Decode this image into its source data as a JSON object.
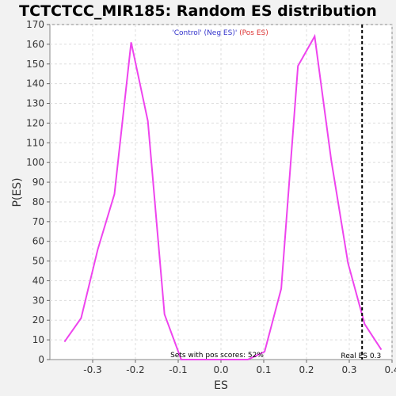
{
  "chart_data": {
    "type": "line",
    "title": "TCTCTCC_MIR185: Random ES distribution",
    "xlabel": "ES",
    "ylabel": "P(ES)",
    "xlim": [
      -0.4,
      0.4
    ],
    "ylim": [
      0,
      170
    ],
    "x_ticks": [
      -0.3,
      -0.2,
      -0.1,
      0.0,
      0.1,
      0.2,
      0.3,
      0.4
    ],
    "x_tick_labels": [
      "-0.3",
      "-0.2",
      "-0.1",
      "0.0",
      "0.1",
      "0.2",
      "0.3",
      "0.4"
    ],
    "y_ticks": [
      0,
      10,
      20,
      30,
      40,
      50,
      60,
      70,
      80,
      90,
      100,
      110,
      120,
      130,
      140,
      150,
      160,
      170
    ],
    "grid": true,
    "legend": {
      "position": "top-center",
      "parts": [
        {
          "text": "'Control' (Neg ES)'",
          "color": "#3333cc"
        },
        {
          "text": " (Pos ES)",
          "color": "#dd3333"
        }
      ]
    },
    "series": [
      {
        "color": "#ee44ee",
        "x": [
          -0.366,
          -0.327,
          -0.288,
          -0.249,
          -0.21,
          -0.171,
          -0.132,
          -0.093,
          -0.054,
          -0.015,
          0.024,
          0.063,
          0.102,
          0.141,
          0.18,
          0.219,
          0.258,
          0.297,
          0.336,
          0.375
        ],
        "y": [
          9,
          21,
          56,
          84,
          161,
          121,
          23,
          0,
          0,
          0,
          0,
          0,
          4,
          36,
          149,
          164,
          101,
          49,
          18,
          5
        ]
      }
    ],
    "real_es": {
      "value": 0.33,
      "label": "Real ES 0.3"
    },
    "annotation": "Sets with pos scores: 52%"
  }
}
